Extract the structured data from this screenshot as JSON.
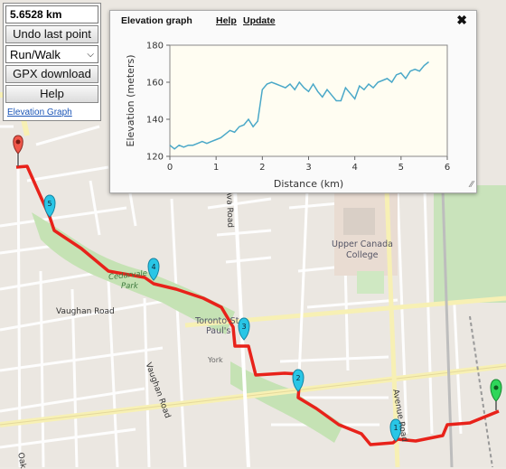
{
  "panel": {
    "distance": "5.6528 km",
    "undo_label": "Undo last point",
    "mode_selected": "Run/Walk",
    "gpx_label": "GPX download",
    "help_label": "Help",
    "elevation_link": "Elevation Graph"
  },
  "elevation_window": {
    "title": "Elevation graph",
    "help_link": "Help",
    "update_link": "Update",
    "close_icon": "close-x",
    "resize_icon": "resize-grip"
  },
  "map": {
    "labels": {
      "upper_canada_1": "Upper Canada",
      "upper_canada_2": "College",
      "toronto_1": "Toronto-St",
      "toronto_2": "Paul's",
      "vaughan_road": "Vaughan Road",
      "vaughan_road_2": "Vaughan Road",
      "cedarvale_park": "Cedarvale",
      "cedarvale_park_2": "Park",
      "avenue_road": "Avenue Road",
      "ava_road": "Ava Road",
      "oak": "Oak",
      "york": "York"
    },
    "markers": [
      {
        "id": "start",
        "color": "#f0574a",
        "label": ""
      },
      {
        "id": "5",
        "color": "#29c6e6",
        "label": "5"
      },
      {
        "id": "4",
        "color": "#29c6e6",
        "label": "4"
      },
      {
        "id": "3",
        "color": "#29c6e6",
        "label": "3"
      },
      {
        "id": "2",
        "color": "#29c6e6",
        "label": "2"
      },
      {
        "id": "1",
        "color": "#29c6e6",
        "label": "1"
      },
      {
        "id": "end",
        "color": "#2fd65a",
        "label": ""
      }
    ],
    "route_color": "#e8221a"
  },
  "chart_data": {
    "type": "line",
    "title": "",
    "xlabel": "Distance (km)",
    "ylabel": "Elevation (meters)",
    "xlim": [
      0,
      6
    ],
    "ylim": [
      120,
      180
    ],
    "xticks": [
      0,
      1,
      2,
      3,
      4,
      5,
      6
    ],
    "yticks": [
      120,
      140,
      160,
      180
    ],
    "grid": false,
    "line_color": "#4aa8c8",
    "series": [
      {
        "name": "",
        "x": [
          0,
          0.1,
          0.2,
          0.3,
          0.4,
          0.5,
          0.6,
          0.7,
          0.8,
          0.9,
          1.0,
          1.1,
          1.2,
          1.3,
          1.4,
          1.5,
          1.6,
          1.7,
          1.8,
          1.9,
          2.0,
          2.1,
          2.2,
          2.3,
          2.4,
          2.5,
          2.6,
          2.7,
          2.8,
          2.9,
          3.0,
          3.1,
          3.2,
          3.3,
          3.4,
          3.5,
          3.6,
          3.7,
          3.8,
          3.9,
          4.0,
          4.1,
          4.2,
          4.3,
          4.4,
          4.5,
          4.6,
          4.7,
          4.8,
          4.9,
          5.0,
          5.1,
          5.2,
          5.3,
          5.4,
          5.5,
          5.6
        ],
        "y": [
          126,
          124,
          126,
          125,
          126,
          126,
          127,
          128,
          127,
          128,
          129,
          130,
          132,
          134,
          133,
          136,
          137,
          140,
          136,
          139,
          156,
          159,
          160,
          159,
          158,
          157,
          159,
          156,
          160,
          157,
          155,
          159,
          155,
          152,
          156,
          153,
          150,
          150,
          157,
          154,
          151,
          158,
          156,
          159,
          157,
          160,
          161,
          162,
          160,
          164,
          165,
          162,
          166,
          167,
          166,
          169,
          171
        ]
      }
    ]
  }
}
